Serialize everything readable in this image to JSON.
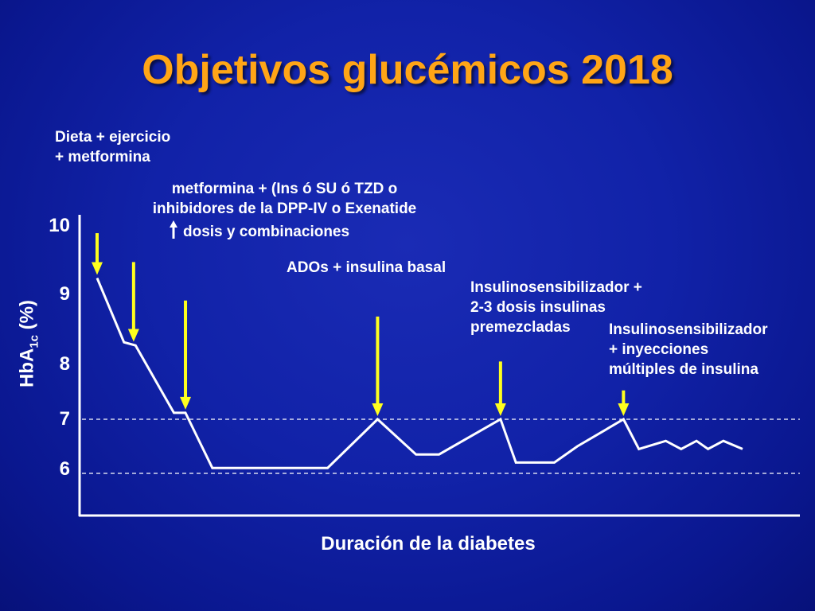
{
  "title": "Objetivos glucémicos 2018",
  "colors": {
    "title": "#ffa516",
    "arrow": "#ffff1e",
    "line": "#ffffff",
    "background": "#1122a8"
  },
  "annotations": {
    "a1_line1": "Dieta + ejercicio",
    "a1_line2": "+ metformina",
    "a2_line1": "metformina + (Ins ó SU ó TZD o",
    "a2_line2": "inhibidores de la DPP-IV o Exenatide",
    "a2_line3": "dosis y combinaciones",
    "a3": "ADOs + insulina basal",
    "a4_line1": "Insulinosensibilizador +",
    "a4_line2": "2-3 dosis insulinas",
    "a4_line3": "premezcladas",
    "a5_line1": "Insulinosensibilizador",
    "a5_line2": "+ inyecciones",
    "a5_line3": "múltiples de insulina"
  },
  "chart_data": {
    "type": "line",
    "title": "",
    "xlabel": "Duración de la diabetes",
    "ylabel_main": "HbA",
    "ylabel_sub": "1c",
    "ylabel_tail": " (%)",
    "y_ticks": [
      "10",
      "9",
      "8",
      "7",
      "6"
    ],
    "reference_lines": [
      7,
      6
    ],
    "grid": false,
    "series": [
      {
        "x": [
          0,
          0.7,
          1.0,
          2.0,
          2.3,
          3.0,
          6.0,
          7.3,
          8.3,
          8.9,
          10.5,
          10.9,
          11.9,
          12.5,
          13.7,
          14.1,
          14.8,
          15.2,
          15.6,
          15.9,
          16.3,
          16.8
        ],
        "y": [
          9.2,
          8.2,
          8.15,
          7.1,
          7.1,
          6.1,
          6.1,
          7.0,
          6.35,
          6.35,
          7.0,
          6.2,
          6.2,
          6.5,
          7.0,
          6.45,
          6.6,
          6.45,
          6.6,
          6.45,
          6.6,
          6.45
        ]
      }
    ],
    "arrows": [
      {
        "x": 0,
        "y_top": 9.9,
        "label": "a1"
      },
      {
        "x": 0.95,
        "y_top": 9.45,
        "label": "a1b"
      },
      {
        "x": 2.3,
        "y_top": 8.85,
        "label": "a2"
      },
      {
        "x": 7.3,
        "y_top": 8.6,
        "label": "a3"
      },
      {
        "x": 10.5,
        "y_top": 7.9,
        "label": "a4"
      },
      {
        "x": 13.7,
        "y_top": 7.45,
        "label": "a5"
      }
    ]
  }
}
